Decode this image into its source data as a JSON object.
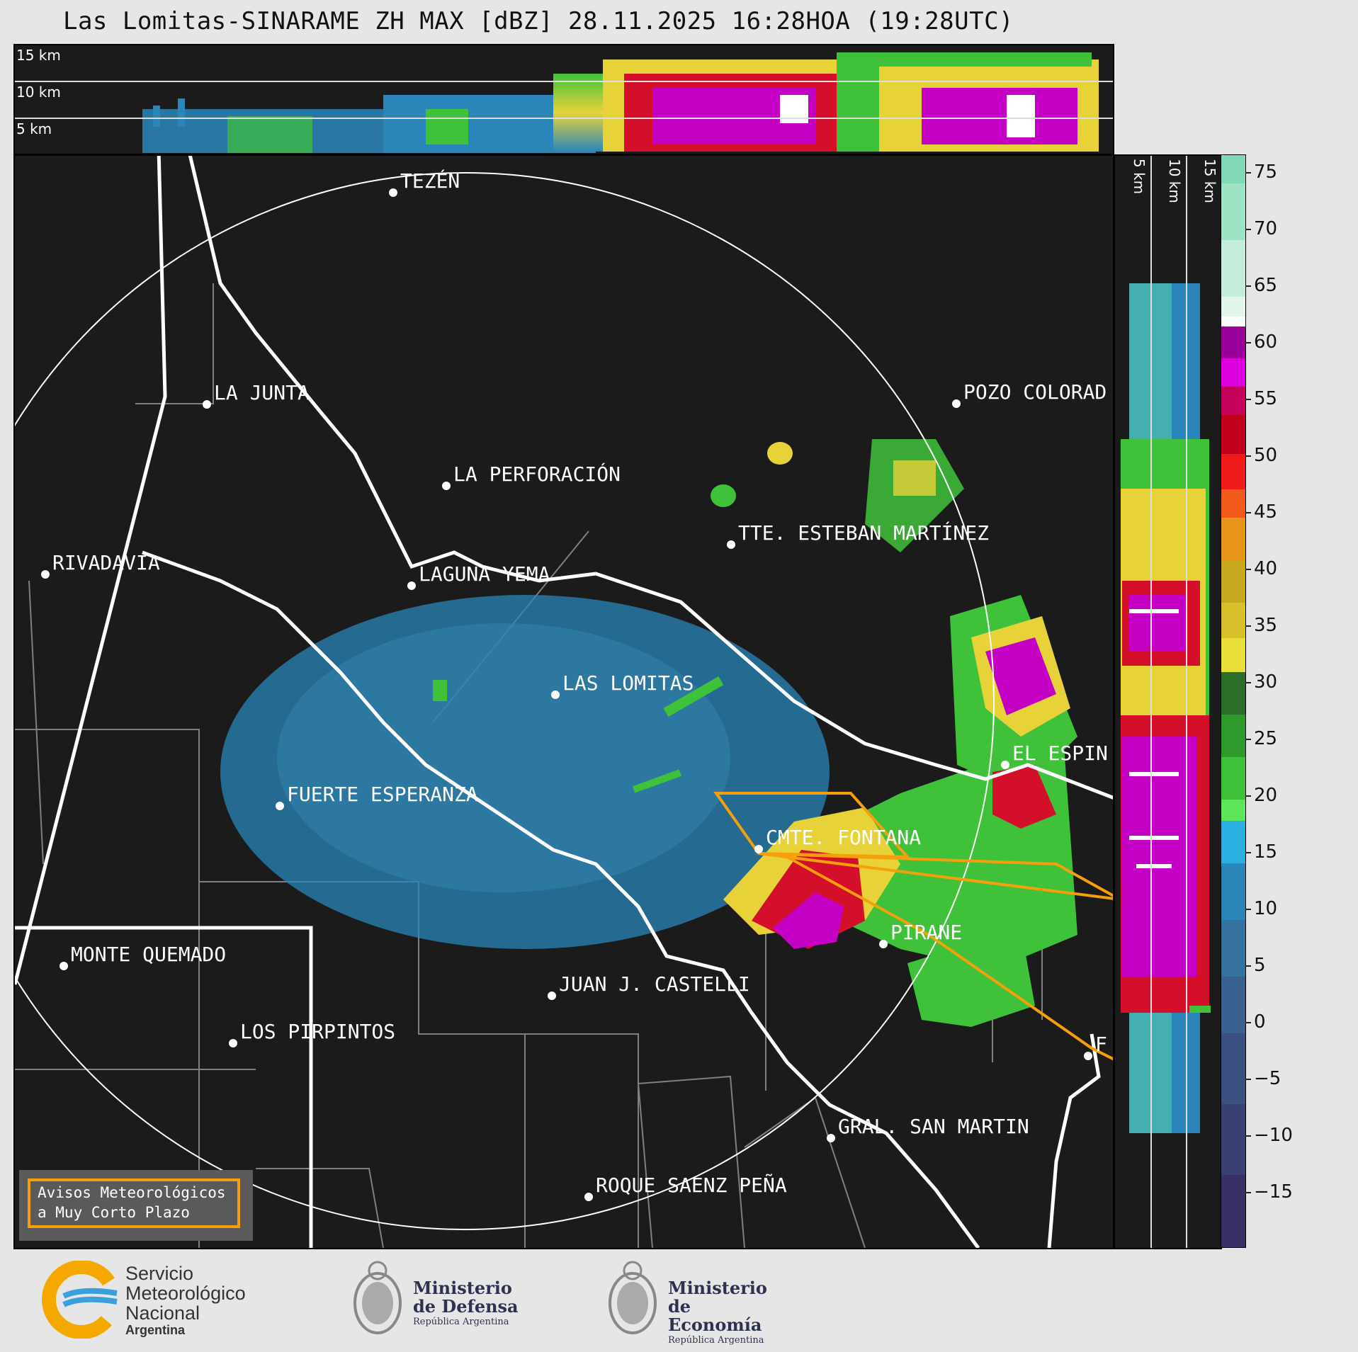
{
  "title": "Las Lomitas-SINARAME ZH MAX [dBZ] 28.11.2025 16:28HOA (19:28UTC)",
  "top_strip": {
    "height_labels": [
      "15 km",
      "10 km",
      "5 km"
    ]
  },
  "side_strip": {
    "height_labels": [
      "5 km",
      "10 km",
      "15 km"
    ]
  },
  "colorbar": {
    "unit": "dBZ",
    "ticks": [
      "75",
      "70",
      "65",
      "60",
      "55",
      "50",
      "45",
      "40",
      "35",
      "30",
      "25",
      "20",
      "15",
      "10",
      "5",
      "0",
      "−5",
      "−10",
      "−15"
    ],
    "range": [
      -20,
      77
    ]
  },
  "cities": [
    "TEZÉN",
    "LA JUNTA",
    "POZO COLORAD",
    "LA PERFORACIÓN",
    "TTE. ESTEBAN MARTÍNEZ",
    "RIVADAVIA",
    "LAGUNA YEMA",
    "LAS LOMITAS",
    "EL ESPIN",
    "FUERTE ESPERANZA",
    "CMTE. FONTANA",
    "PIRANE",
    "MONTE QUEMADO",
    "JUAN J. CASTELLI",
    "LOS PIRPINTOS",
    "GRAL. SAN MARTIN",
    "ROQUE SAENZ PEÑA",
    "F"
  ],
  "warning_box": {
    "line1": "Avisos Meteorológicos",
    "line2": "a Muy Corto Plazo"
  },
  "logos": {
    "smn": {
      "line1": "Servicio",
      "line2": "Meteorológico",
      "line3": "Nacional",
      "line4": "Argentina"
    },
    "defensa": {
      "line1": "Ministerio",
      "line2": "de Defensa",
      "line3": "República Argentina"
    },
    "economia": {
      "line1": "Ministerio",
      "line2": "de Economía",
      "line3": "República Argentina"
    }
  },
  "colors": {
    "background": "#1b1b1b",
    "border_line": "#ffffff",
    "department_line": "#808080",
    "warning_polygon": "#f5a00b",
    "echo_weak": "#2a86b8",
    "echo_moderate": "#3fc23a",
    "echo_strong": "#e8d23a",
    "echo_heavy": "#d40f2a",
    "echo_extreme": "#c400c4"
  }
}
